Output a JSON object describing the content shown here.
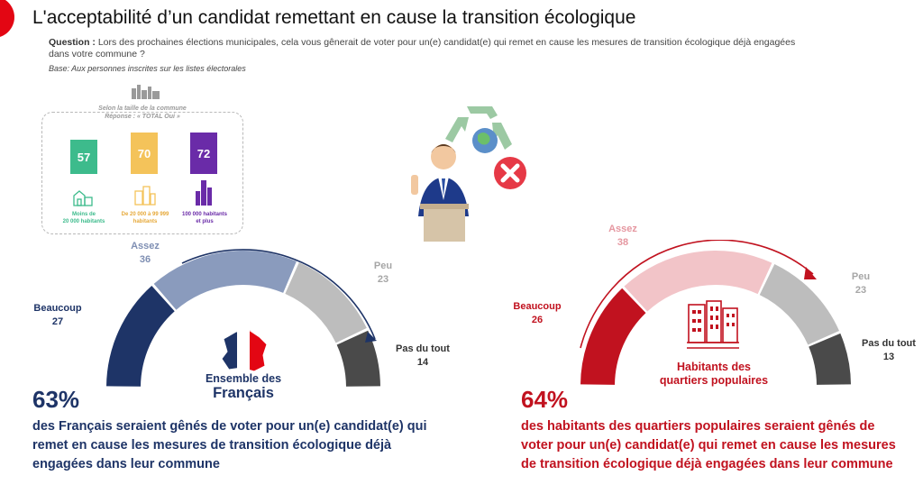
{
  "header": {
    "title": "L'acceptabilité d’un candidat remettant en cause la transition écologique",
    "question_label": "Question :",
    "question_text": "Lors des prochaines élections municipales, cela vous gênerait de voter pour un(e) candidat(e) qui remet en cause les mesures de transition écologique déjà engagées dans votre commune ?",
    "base": "Base: Aux personnes inscrites sur les listes électorales"
  },
  "commune_panel": {
    "title_line1": "Selon la taille de la commune",
    "title_line2": "Réponse : « TOTAL Oui »",
    "bars": [
      {
        "value": "57",
        "label_line1": "Moins de",
        "label_line2": "20 000 habitants",
        "color": "#3dbb8c"
      },
      {
        "value": "70",
        "label_line1": "De 20 000 à 99 999",
        "label_line2": "habitants",
        "color": "#f4c35a"
      },
      {
        "value": "72",
        "label_line1": "100 000 habitants",
        "label_line2": "et plus",
        "color": "#6a2ba8"
      }
    ]
  },
  "chart_data": [
    {
      "type": "gauge",
      "title": "Ensemble des Français",
      "title_line1": "Ensemble des",
      "title_line2": "Français",
      "segments": [
        {
          "name": "Beaucoup",
          "value": 27,
          "color": "#1e3467"
        },
        {
          "name": "Assez",
          "value": 36,
          "color": "#8a9bbd"
        },
        {
          "name": "Peu",
          "value": 23,
          "color": "#bdbdbd"
        },
        {
          "name": "Pas du tout",
          "value": 14,
          "color": "#4a4a4a"
        }
      ],
      "total_pct": "63%",
      "text": "des Français seraient gênés de voter pour un(e) candidat(e) qui remet en cause les mesures de transition écologique déjà engagées dans leur commune",
      "accent": "#1e3467"
    },
    {
      "type": "gauge",
      "title": "Habitants des quartiers populaires",
      "title_line1": "Habitants des",
      "title_line2": "quartiers populaires",
      "segments": [
        {
          "name": "Beaucoup",
          "value": 26,
          "color": "#c1121f"
        },
        {
          "name": "Assez",
          "value": 38,
          "color": "#f2c4c8"
        },
        {
          "name": "Peu",
          "value": 23,
          "color": "#bdbdbd"
        },
        {
          "name": "Pas du tout",
          "value": 13,
          "color": "#4a4a4a"
        }
      ],
      "total_pct": "64%",
      "text": "des habitants des quartiers populaires seraient gênés de voter pour un(e) candidat(e) qui remet en cause les mesures de transition écologique déjà engagées dans leur commune",
      "accent": "#c1121f"
    }
  ]
}
